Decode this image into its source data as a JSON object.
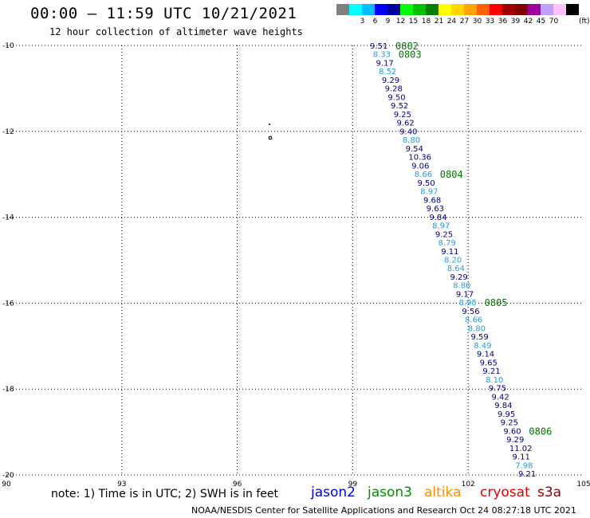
{
  "header": {
    "title": "00:00 – 11:59 UTC 10/21/2021",
    "subtitle": "12 hour collection of altimeter wave heights"
  },
  "legend": {
    "unit": "(ft)",
    "bins": [
      {
        "label": "",
        "color": "#808080"
      },
      {
        "label": "3",
        "color": "#00ffff"
      },
      {
        "label": "6",
        "color": "#00bfff"
      },
      {
        "label": "9",
        "color": "#0000ff"
      },
      {
        "label": "12",
        "color": "#0000a0"
      },
      {
        "label": "15",
        "color": "#00ff00"
      },
      {
        "label": "18",
        "color": "#00c000"
      },
      {
        "label": "21",
        "color": "#008000"
      },
      {
        "label": "24",
        "color": "#ffff00"
      },
      {
        "label": "27",
        "color": "#ffd700"
      },
      {
        "label": "30",
        "color": "#ffa500"
      },
      {
        "label": "33",
        "color": "#ff6000"
      },
      {
        "label": "36",
        "color": "#ff0000"
      },
      {
        "label": "39",
        "color": "#a00000"
      },
      {
        "label": "42",
        "color": "#800000"
      },
      {
        "label": "45",
        "color": "#a000a0"
      },
      {
        "label": "70",
        "color": "#c0a0ff"
      },
      {
        "label": "",
        "color": "#ffc0ff"
      },
      {
        "label": "",
        "color": "#000000"
      }
    ]
  },
  "map": {
    "lon_ticks": [
      "90",
      "93",
      "96",
      "99",
      "102",
      "105"
    ],
    "lat_ticks": [
      "-10",
      "-12",
      "-14",
      "-16",
      "-18",
      "-20"
    ],
    "lon_range": [
      90,
      105
    ],
    "lat_range": [
      -20,
      -10
    ],
    "colors": {
      "light": "#1e9fd8",
      "dark": "#000080",
      "time": "#007a00"
    },
    "wave_heights": [
      {
        "v": "9.51",
        "c": "dark"
      },
      {
        "v": "8.33",
        "c": "light"
      },
      {
        "v": "9.17",
        "c": "dark"
      },
      {
        "v": "8.52",
        "c": "light"
      },
      {
        "v": "9.29",
        "c": "dark"
      },
      {
        "v": "9.28",
        "c": "dark"
      },
      {
        "v": "9.50",
        "c": "dark"
      },
      {
        "v": "9.52",
        "c": "dark"
      },
      {
        "v": "9.25",
        "c": "dark"
      },
      {
        "v": "9.62",
        "c": "dark"
      },
      {
        "v": "9.40",
        "c": "dark"
      },
      {
        "v": "8.80",
        "c": "light"
      },
      {
        "v": "9.54",
        "c": "dark"
      },
      {
        "v": "10.36",
        "c": "dark"
      },
      {
        "v": "9.06",
        "c": "dark"
      },
      {
        "v": "8.66",
        "c": "light"
      },
      {
        "v": "9.50",
        "c": "dark"
      },
      {
        "v": "8.97",
        "c": "light"
      },
      {
        "v": "9.68",
        "c": "dark"
      },
      {
        "v": "9.63",
        "c": "dark"
      },
      {
        "v": "9.84",
        "c": "dark"
      },
      {
        "v": "8.97",
        "c": "light"
      },
      {
        "v": "9.25",
        "c": "dark"
      },
      {
        "v": "8.79",
        "c": "light"
      },
      {
        "v": "9.11",
        "c": "dark"
      },
      {
        "v": "8.20",
        "c": "light"
      },
      {
        "v": "8.64",
        "c": "light"
      },
      {
        "v": "9.29",
        "c": "dark"
      },
      {
        "v": "8.80",
        "c": "light"
      },
      {
        "v": "9.17",
        "c": "dark"
      },
      {
        "v": "8.95",
        "c": "light"
      },
      {
        "v": "9.56",
        "c": "dark"
      },
      {
        "v": "8.66",
        "c": "light"
      },
      {
        "v": "8.80",
        "c": "light"
      },
      {
        "v": "9.59",
        "c": "dark"
      },
      {
        "v": "8.49",
        "c": "light"
      },
      {
        "v": "9.14",
        "c": "dark"
      },
      {
        "v": "9.65",
        "c": "dark"
      },
      {
        "v": "9.21",
        "c": "dark"
      },
      {
        "v": "8.10",
        "c": "light"
      },
      {
        "v": "9.75",
        "c": "dark"
      },
      {
        "v": "9.42",
        "c": "dark"
      },
      {
        "v": "9.84",
        "c": "dark"
      },
      {
        "v": "9.95",
        "c": "dark"
      },
      {
        "v": "9.25",
        "c": "dark"
      },
      {
        "v": "9.60",
        "c": "dark"
      },
      {
        "v": "9.29",
        "c": "dark"
      },
      {
        "v": "11.02",
        "c": "dark"
      },
      {
        "v": "9.11",
        "c": "dark"
      },
      {
        "v": "7.98",
        "c": "light"
      },
      {
        "v": "9.21",
        "c": "dark"
      }
    ],
    "time_labels": [
      {
        "t": "0802",
        "after": 0
      },
      {
        "t": "0803",
        "after": 1
      },
      {
        "t": "0804",
        "after": 15
      },
      {
        "t": "0805",
        "after": 30
      },
      {
        "t": "0806",
        "after": 45
      }
    ]
  },
  "note": "note: 1) Time is in UTC; 2) SWH is in feet",
  "satellites": [
    {
      "name": "jason2",
      "color": "#0000dd"
    },
    {
      "name": "jason3",
      "color": "#009000"
    },
    {
      "name": "altika",
      "color": "#ff8c00"
    },
    {
      "name": "cryosat",
      "color": "#dd0000"
    },
    {
      "name": "s3a",
      "color": "#8b0000"
    }
  ],
  "footer": "NOAA/NESDIS Center for Satellite Applications and Research    Oct 24 08:27:18 UTC 2021"
}
